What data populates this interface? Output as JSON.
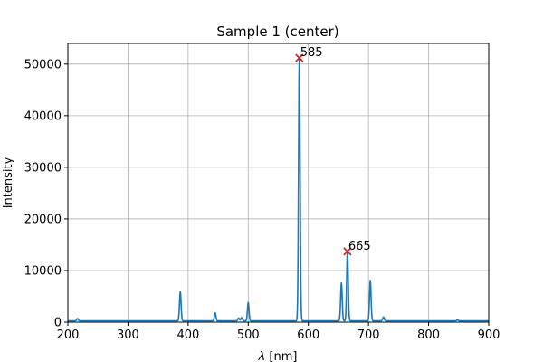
{
  "chart_data": {
    "type": "line",
    "title": "Sample 1 (center)",
    "xlabel_symbol": "λ",
    "xlabel_unit": " [nm]",
    "ylabel": "Intensity",
    "xlim": [
      200,
      900
    ],
    "ylim": [
      0,
      54000
    ],
    "grid": true,
    "xticks": [
      200,
      300,
      400,
      500,
      600,
      700,
      800,
      900
    ],
    "yticks": [
      0,
      10000,
      20000,
      30000,
      40000,
      50000
    ],
    "colors": {
      "line": "#1f77b4",
      "marker": "#d62728",
      "grid": "#b0b0b0",
      "axes": "#000000"
    },
    "baseline": 250,
    "peaks": [
      {
        "x": 216,
        "y": 700
      },
      {
        "x": 387,
        "y": 5900
      },
      {
        "x": 445,
        "y": 1800
      },
      {
        "x": 484,
        "y": 800
      },
      {
        "x": 489,
        "y": 900
      },
      {
        "x": 500,
        "y": 3800
      },
      {
        "x": 585,
        "y": 51200
      },
      {
        "x": 655,
        "y": 7600
      },
      {
        "x": 665,
        "y": 13600
      },
      {
        "x": 703,
        "y": 8100
      },
      {
        "x": 725,
        "y": 1000
      },
      {
        "x": 848,
        "y": 450
      }
    ],
    "annotations": [
      {
        "x": 585,
        "y": 51200,
        "label": "585"
      },
      {
        "x": 665,
        "y": 13700,
        "label": "665"
      }
    ]
  }
}
